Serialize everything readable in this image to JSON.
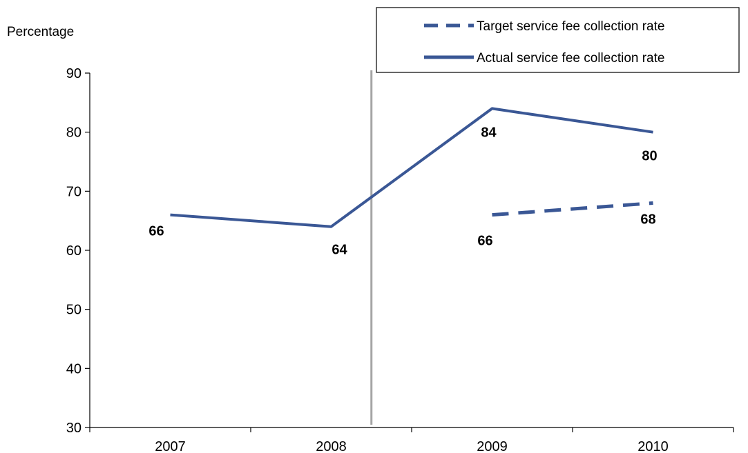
{
  "chart_data": {
    "type": "line",
    "ylabel": "Percentage",
    "xlabel": "",
    "ylim": [
      30,
      90
    ],
    "yticks": [
      30,
      40,
      50,
      60,
      70,
      80,
      90
    ],
    "categories": [
      "2007",
      "2008",
      "2009",
      "2010"
    ],
    "grid": false,
    "legend_position": "top-right",
    "series": [
      {
        "name": "Target service fee collection rate",
        "style": "dashed",
        "color": "#3A5795",
        "values": [
          null,
          null,
          66,
          68
        ],
        "labels": [
          "",
          "",
          "66",
          "68"
        ]
      },
      {
        "name": "Actual service fee collection rate",
        "style": "solid",
        "color": "#3A5795",
        "values": [
          66,
          64,
          84,
          80
        ],
        "labels": [
          "66",
          "64",
          "84",
          "80"
        ]
      }
    ],
    "reference_line": {
      "orientation": "vertical",
      "position_between": [
        "2008",
        "2009"
      ],
      "color": "#A6A6A6"
    }
  }
}
